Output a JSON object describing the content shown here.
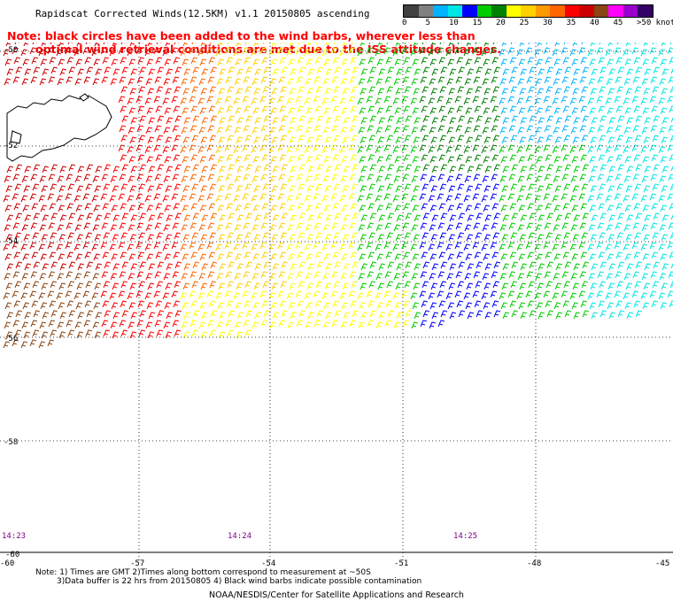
{
  "title": "Rapidscat Corrected Winds(12.5KM) v1.1 20150805 ascending",
  "legend": {
    "labels": [
      "0",
      "5",
      "10",
      "15",
      "20",
      "25",
      "30",
      "35",
      "40",
      "45",
      ">50 knots"
    ],
    "colors": [
      "#404040",
      "#808080",
      "#00b4ff",
      "#00e6e6",
      "#0000ff",
      "#00cc00",
      "#008000",
      "#ffff00",
      "#ffd000",
      "#ff9900",
      "#ff6600",
      "#ff0000",
      "#cc0000",
      "#8b4513",
      "#ff00ff",
      "#9900cc",
      "#330066"
    ]
  },
  "note": {
    "line1": "Note: black circles have been added to the wind barbs, wherever less than",
    "line2": "optimal wind retrieval conditions are met due to the ISS attitude changes."
  },
  "lat_labels": [
    "-50",
    "-52",
    "-54",
    "-56",
    "-58",
    "-60"
  ],
  "lon_labels": [
    "-60",
    "-57",
    "-54",
    "-51",
    "-48",
    "-45"
  ],
  "times": [
    "14:23",
    "14:24",
    "14:25"
  ],
  "footnotes": {
    "line1": "Note: 1) Times are GMT 2)Times along bottom correspond to measurement at ~50S",
    "line2": "3)Data buffer is 22 hrs from 20150805 4) Black wind barbs indicate possible contamination"
  },
  "credit": "NOAA/NESDIS/Center for Satellite Applications and Research"
}
